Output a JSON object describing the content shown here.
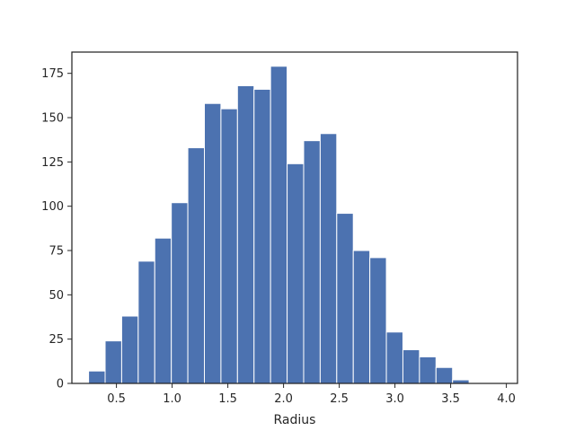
{
  "chart_data": {
    "type": "bar",
    "subtype": "histogram",
    "title": "",
    "xlabel": "Radius",
    "ylabel": "",
    "bar_color": "#4c72b0",
    "bar_edge_color": "#ffffff",
    "grid": false,
    "xlim": [
      0.1,
      4.1
    ],
    "ylim": [
      0,
      187
    ],
    "bins": {
      "start": 0.25,
      "width": 0.1485,
      "counts": [
        7,
        24,
        38,
        69,
        82,
        102,
        133,
        158,
        155,
        168,
        166,
        179,
        124,
        137,
        141,
        96,
        75,
        71,
        29,
        19,
        15,
        9,
        2,
        0
      ]
    },
    "x_ticks": [
      {
        "value": 0.5,
        "label": "0.5"
      },
      {
        "value": 1.0,
        "label": "1.0"
      },
      {
        "value": 1.5,
        "label": "1.5"
      },
      {
        "value": 2.0,
        "label": "2.0"
      },
      {
        "value": 2.5,
        "label": "2.5"
      },
      {
        "value": 3.0,
        "label": "3.0"
      },
      {
        "value": 3.5,
        "label": "3.5"
      },
      {
        "value": 4.0,
        "label": "4.0"
      }
    ],
    "y_ticks": [
      {
        "value": 0,
        "label": "0"
      },
      {
        "value": 25,
        "label": "25"
      },
      {
        "value": 50,
        "label": "50"
      },
      {
        "value": 75,
        "label": "75"
      },
      {
        "value": 100,
        "label": "100"
      },
      {
        "value": 125,
        "label": "125"
      },
      {
        "value": 150,
        "label": "150"
      },
      {
        "value": 175,
        "label": "175"
      }
    ]
  }
}
